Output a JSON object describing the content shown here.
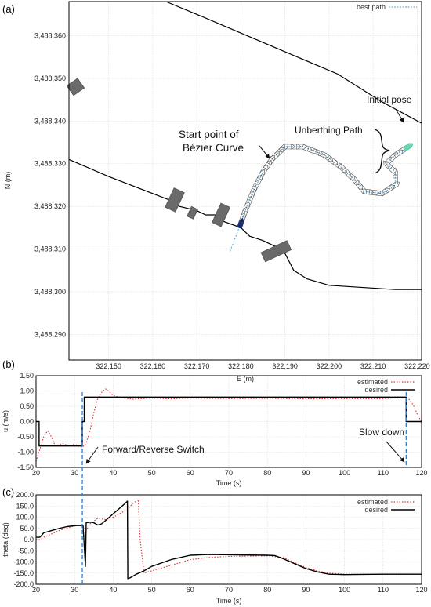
{
  "chart_data": [
    {
      "panel_label": "(a)",
      "type": "line",
      "xlabel": "E (m)",
      "ylabel": "N (m)",
      "xlim": [
        322141,
        322221
      ],
      "ylim": [
        3488284,
        3488368
      ],
      "xticks": [
        322150,
        322160,
        322170,
        322180,
        322190,
        322200,
        322210,
        322220
      ],
      "xtick_labels": [
        "322,150",
        "322,160",
        "322,170",
        "322,180",
        "322,190",
        "322,200",
        "322,210",
        "322,220"
      ],
      "yticks": [
        3488290,
        3488300,
        3488310,
        3488320,
        3488330,
        3488340,
        3488350,
        3488360
      ],
      "ytick_labels": [
        "3,488,290",
        "3,488,300",
        "3,488,310",
        "3,488,320",
        "3,488,330",
        "3,488,340",
        "3,488,350",
        "3,488,360"
      ],
      "grid": true,
      "legend": {
        "position": "top-right",
        "entries": [
          "best path"
        ]
      },
      "upper_shore": [
        [
          322163,
          3488368
        ],
        [
          322170,
          3488365
        ],
        [
          322186,
          3488358
        ],
        [
          322202,
          3488351
        ],
        [
          322212,
          3488344.5
        ],
        [
          322221,
          3488339.5
        ]
      ],
      "lower_shore": [
        [
          322141,
          3488331
        ],
        [
          322150,
          3488327
        ],
        [
          322160,
          3488323
        ],
        [
          322165,
          3488321
        ],
        [
          322166,
          3488320
        ],
        [
          322170,
          3488319
        ],
        [
          322172,
          3488318
        ],
        [
          322175,
          3488318
        ],
        [
          322176,
          3488316.5
        ],
        [
          322180,
          3488315
        ],
        [
          322182,
          3488313
        ],
        [
          322185,
          3488312
        ],
        [
          322188,
          3488310.5
        ],
        [
          322190,
          3488309
        ],
        [
          322192,
          3488305
        ],
        [
          322195,
          3488303
        ],
        [
          322200,
          3488301.5
        ],
        [
          322215,
          3488300.5
        ],
        [
          322221,
          3488300.5
        ]
      ],
      "best_path": [
        [
          322180,
          3488316
        ],
        [
          322181,
          3488319
        ],
        [
          322183,
          3488324
        ],
        [
          322185,
          3488328
        ],
        [
          322187,
          3488331
        ],
        [
          322190,
          3488334
        ],
        [
          322194,
          3488334
        ],
        [
          322199,
          3488332
        ],
        [
          322203,
          3488329
        ],
        [
          322206,
          3488326
        ],
        [
          322208,
          3488323.5
        ],
        [
          322212,
          3488323
        ],
        [
          322215,
          3488325
        ],
        [
          322215,
          3488328
        ],
        [
          322213,
          3488330
        ],
        [
          322215,
          3488332
        ],
        [
          322218,
          3488334
        ]
      ],
      "buildings": [
        {
          "cx": 322142.5,
          "cy": 3488348,
          "w": 3,
          "h": 2.8,
          "angle": -35
        },
        {
          "cx": 322165,
          "cy": 3488321.5,
          "w": 2.6,
          "h": 5,
          "angle": 25
        },
        {
          "cx": 322169,
          "cy": 3488318.5,
          "w": 1.6,
          "h": 2.5,
          "angle": 25
        },
        {
          "cx": 322175.5,
          "cy": 3488318,
          "w": 2.3,
          "h": 5,
          "angle": 25
        },
        {
          "cx": 322188,
          "cy": 3488309.5,
          "w": 6.5,
          "h": 2.4,
          "angle": -25
        }
      ],
      "annotations": [
        "Initial pose",
        "Unberthing Path",
        "Start point of",
        "Bézier Curve"
      ]
    },
    {
      "panel_label": "(b)",
      "type": "line",
      "xlabel": "Time (s)",
      "ylabel": "u (m/s)",
      "xlim": [
        20,
        120
      ],
      "ylim": [
        -1.5,
        1.5
      ],
      "xticks": [
        20,
        30,
        40,
        50,
        60,
        70,
        80,
        90,
        100,
        110,
        120
      ],
      "yticks": [
        -1.5,
        -1.0,
        -0.5,
        0.0,
        0.5,
        1.0,
        1.5
      ],
      "ytick_labels": [
        "-1.50",
        "-1.00",
        "-0.50",
        "0.00",
        "0.50",
        "1.00",
        "1.50"
      ],
      "grid": true,
      "legend": {
        "position": "top-right"
      },
      "series": [
        {
          "name": "estimated",
          "style": "dotted",
          "color": "#e03030",
          "x": [
            20,
            21,
            22,
            23,
            24,
            25,
            26,
            27,
            28,
            30,
            31,
            32,
            33,
            34,
            35,
            36,
            37,
            38,
            39,
            40,
            42,
            45,
            50,
            55,
            60,
            70,
            80,
            90,
            100,
            110,
            116,
            117,
            118,
            119,
            120
          ],
          "y": [
            -1.3,
            -0.9,
            -0.5,
            -0.3,
            -0.5,
            -0.8,
            -0.75,
            -0.72,
            -0.78,
            -0.75,
            -0.8,
            -0.85,
            -0.7,
            -0.3,
            0.3,
            0.75,
            0.95,
            1.07,
            0.98,
            0.85,
            0.78,
            0.73,
            0.77,
            0.74,
            0.77,
            0.75,
            0.76,
            0.74,
            0.75,
            0.75,
            0.8,
            0.7,
            0.5,
            0.2,
            0.0
          ]
        },
        {
          "name": "desired",
          "style": "solid",
          "color": "#000000",
          "x": [
            20,
            20.8,
            20.8,
            32,
            32,
            32.5,
            32.5,
            116,
            116,
            117,
            117,
            120
          ],
          "y": [
            0.0,
            0.0,
            -0.8,
            -0.8,
            0.0,
            0.0,
            0.8,
            0.8,
            0.0,
            0.0,
            0.0,
            0.0
          ]
        }
      ],
      "annotations": [
        "Forward/Reverse Switch",
        "Slow down"
      ]
    },
    {
      "panel_label": "(c)",
      "type": "line",
      "xlabel": "Time (s)",
      "ylabel": "theta (deg)",
      "xlim": [
        20,
        120
      ],
      "ylim": [
        -200,
        200
      ],
      "xticks": [
        20,
        30,
        40,
        50,
        60,
        70,
        80,
        90,
        100,
        110,
        120
      ],
      "yticks": [
        -200,
        -150,
        -100,
        -50,
        0,
        50,
        100,
        150,
        200
      ],
      "ytick_labels": [
        "-200.0",
        "-150.0",
        "-100.0",
        "-50.0",
        "0.0",
        "50.0",
        "100.0",
        "150.0",
        "200.0"
      ],
      "grid": true,
      "legend": {
        "position": "top-right"
      },
      "series": [
        {
          "name": "estimated",
          "style": "dotted",
          "color": "#e03030",
          "x": [
            20,
            21,
            22,
            24,
            26,
            28,
            30,
            31,
            32,
            32.5,
            33,
            34,
            36,
            38,
            40,
            42,
            44,
            45,
            46,
            46.5,
            47,
            48,
            50,
            55,
            60,
            65,
            70,
            80,
            84,
            86,
            88,
            90,
            93,
            96,
            100,
            110,
            118,
            120
          ],
          "y": [
            0,
            0,
            10,
            25,
            40,
            52,
            60,
            64,
            62,
            55,
            40,
            70,
            95,
            90,
            100,
            118,
            140,
            160,
            172,
            180,
            0,
            -150,
            -140,
            -115,
            -90,
            -80,
            -75,
            -73,
            -80,
            -95,
            -110,
            -125,
            -140,
            -150,
            -155,
            -155,
            -155,
            -155
          ]
        },
        {
          "name": "desired",
          "style": "solid",
          "color": "#000000",
          "x": [
            20,
            21,
            22,
            24,
            26,
            28,
            30,
            31,
            32,
            32.2,
            32.8,
            33,
            34,
            35,
            36,
            37,
            38,
            39,
            40,
            41,
            42,
            43,
            43.7,
            43.8,
            44.5,
            46,
            48,
            50,
            55,
            60,
            65,
            70,
            80,
            82,
            84,
            86,
            88,
            90,
            93,
            96,
            100,
            110,
            118,
            120
          ],
          "y": [
            10,
            10,
            30,
            40,
            50,
            58,
            62,
            63,
            62,
            62,
            -120,
            75,
            78,
            75,
            65,
            70,
            85,
            100,
            115,
            130,
            145,
            160,
            172,
            -175,
            -170,
            -155,
            -140,
            -120,
            -90,
            -70,
            -67,
            -68,
            -70,
            -72,
            -85,
            -100,
            -115,
            -130,
            -145,
            -155,
            -157,
            -155,
            -155,
            -155
          ]
        }
      ]
    }
  ]
}
